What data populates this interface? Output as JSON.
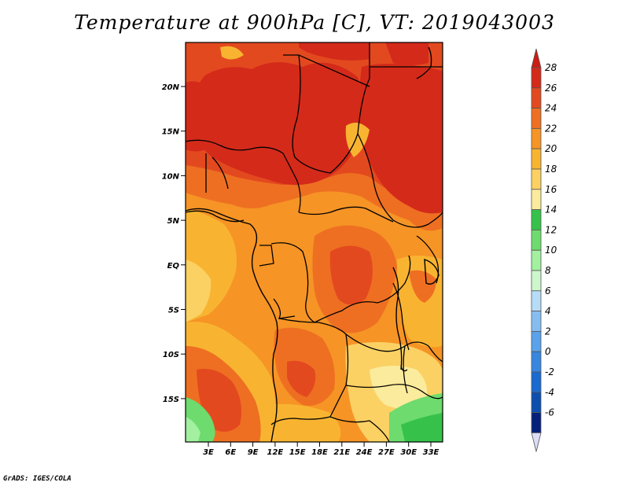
{
  "title": "Temperature at 900hPa [C], VT: 2019043003",
  "credit": "GrADS: IGES/COLA",
  "axes": {
    "lat_labels": [
      "20N",
      "15N",
      "10N",
      "5N",
      "EQ",
      "5S",
      "10S",
      "15S"
    ],
    "lon_labels": [
      "3E",
      "6E",
      "9E",
      "12E",
      "15E",
      "18E",
      "21E",
      "24E",
      "27E",
      "30E",
      "33E"
    ]
  },
  "colorbar": {
    "labels": [
      "28",
      "26",
      "24",
      "22",
      "20",
      "18",
      "16",
      "14",
      "12",
      "10",
      "8",
      "6",
      "4",
      "2",
      "0",
      "-2",
      "-4",
      "-6"
    ],
    "colors": [
      "#d42a1a",
      "#e3491f",
      "#ee6f22",
      "#f69425",
      "#f8b431",
      "#fbd164",
      "#fbeb9c",
      "#36c24a",
      "#6ddb6d",
      "#a3f0a0",
      "#cdf6cc",
      "#b7dcf7",
      "#86bdf0",
      "#5aa2eb",
      "#3786e0",
      "#196bd1",
      "#0d4fae",
      "#04207a"
    ],
    "top_color": "#cc1d14",
    "bottom_color": "#dcdcf5"
  }
}
